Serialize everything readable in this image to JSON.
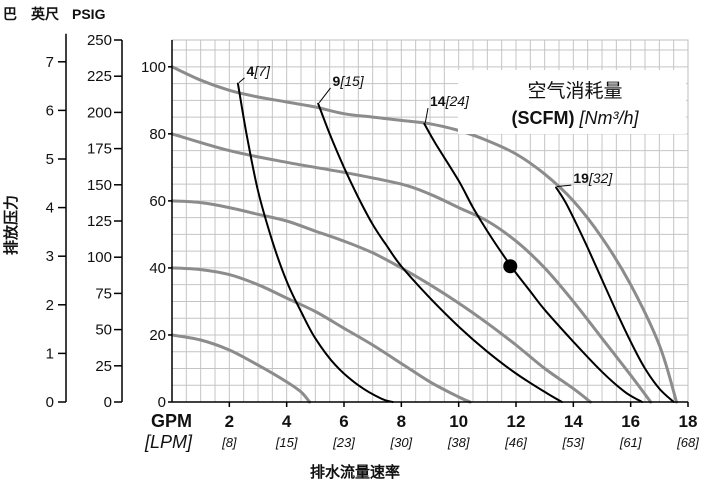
{
  "chart_data": {
    "type": "line",
    "title": "",
    "xlabel": "排水流量速率",
    "ylabel": "排放压力",
    "x_axis": {
      "unit_primary": "GPM",
      "unit_secondary": "[LPM]",
      "range": [
        0,
        18
      ],
      "ticks": [
        {
          "gpm": "2",
          "lpm": "[8]",
          "v": 2
        },
        {
          "gpm": "4",
          "lpm": "[15]",
          "v": 4
        },
        {
          "gpm": "6",
          "lpm": "[23]",
          "v": 6
        },
        {
          "gpm": "8",
          "lpm": "[30]",
          "v": 8
        },
        {
          "gpm": "10",
          "lpm": "[38]",
          "v": 10
        },
        {
          "gpm": "12",
          "lpm": "[46]",
          "v": 12
        },
        {
          "gpm": "14",
          "lpm": "[53]",
          "v": 14
        },
        {
          "gpm": "16",
          "lpm": "[61]",
          "v": 16
        },
        {
          "gpm": "18",
          "lpm": "[68]",
          "v": 18
        }
      ]
    },
    "y_axis_feet": {
      "unit": "英尺",
      "range": [
        0,
        250
      ],
      "ticks": [
        "0",
        "25",
        "50",
        "75",
        "100",
        "125",
        "150",
        "175",
        "200",
        "225",
        "250"
      ]
    },
    "y_axis_bar": {
      "unit": "巴",
      "ticks": [
        {
          "label": "0",
          "psig": 0
        },
        {
          "label": "1",
          "psig": 14.5
        },
        {
          "label": "2",
          "psig": 29
        },
        {
          "label": "3",
          "psig": 43.5
        },
        {
          "label": "4",
          "psig": 58
        },
        {
          "label": "5",
          "psig": 72.5
        },
        {
          "label": "6",
          "psig": 87
        },
        {
          "label": "7",
          "psig": 101.5
        }
      ]
    },
    "y_axis_psig": {
      "unit": "PSIG",
      "range": [
        0,
        108
      ],
      "ticks": [
        "0",
        "20",
        "40",
        "60",
        "80",
        "100"
      ]
    },
    "grid": true,
    "legend": {
      "title_cn": "空气消耗量",
      "title_unit_bold": "(SCFM)",
      "title_unit_italic": "[Nm³/h]"
    },
    "pressure_curves": [
      {
        "points": [
          [
            0,
            100
          ],
          [
            1,
            96
          ],
          [
            2,
            93
          ],
          [
            3,
            91
          ],
          [
            4,
            89.5
          ],
          [
            5,
            88
          ],
          [
            6,
            86
          ],
          [
            7,
            85
          ],
          [
            8,
            84
          ],
          [
            9,
            83
          ],
          [
            10,
            81
          ],
          [
            11,
            78
          ],
          [
            12,
            74
          ],
          [
            13,
            68
          ],
          [
            14,
            60
          ],
          [
            15,
            49
          ],
          [
            16,
            35
          ],
          [
            17,
            17
          ],
          [
            17.6,
            0
          ]
        ]
      },
      {
        "points": [
          [
            0,
            80
          ],
          [
            2,
            75
          ],
          [
            4,
            71.5
          ],
          [
            6,
            68.5
          ],
          [
            8,
            65
          ],
          [
            9,
            62
          ],
          [
            10,
            58
          ],
          [
            11,
            54
          ],
          [
            12,
            48
          ],
          [
            13,
            40
          ],
          [
            14,
            30
          ],
          [
            15,
            19
          ],
          [
            16,
            8
          ],
          [
            16.7,
            0
          ]
        ]
      },
      {
        "points": [
          [
            0,
            60
          ],
          [
            1,
            59.5
          ],
          [
            2,
            58
          ],
          [
            3,
            56
          ],
          [
            4,
            54
          ],
          [
            5,
            51
          ],
          [
            6,
            48
          ],
          [
            7,
            44.5
          ],
          [
            8,
            40
          ],
          [
            9,
            35
          ],
          [
            10,
            29.5
          ],
          [
            11,
            23.5
          ],
          [
            12,
            17
          ],
          [
            13,
            10
          ],
          [
            14,
            4
          ],
          [
            14.6,
            0
          ]
        ]
      },
      {
        "points": [
          [
            0,
            40
          ],
          [
            1,
            39.5
          ],
          [
            2,
            38
          ],
          [
            3,
            35
          ],
          [
            4,
            31
          ],
          [
            5,
            27
          ],
          [
            6,
            22
          ],
          [
            7,
            17
          ],
          [
            8,
            11.5
          ],
          [
            9,
            6
          ],
          [
            10,
            1.5
          ],
          [
            10.4,
            0
          ]
        ]
      },
      {
        "points": [
          [
            0,
            20
          ],
          [
            1,
            18.5
          ],
          [
            2,
            15.5
          ],
          [
            3,
            11
          ],
          [
            4,
            6
          ],
          [
            4.5,
            3
          ],
          [
            4.8,
            0
          ]
        ]
      }
    ],
    "air_consumption_curves": [
      {
        "label_bold": "4",
        "label_italic": "[7]",
        "label_at": [
          2.6,
          97
        ],
        "points": [
          [
            2.3,
            95
          ],
          [
            2.6,
            80
          ],
          [
            3,
            63
          ],
          [
            3.5,
            48
          ],
          [
            4,
            36
          ],
          [
            4.5,
            27
          ],
          [
            5,
            19
          ],
          [
            5.7,
            11
          ],
          [
            6.5,
            5
          ],
          [
            7.3,
            1
          ],
          [
            7.7,
            0
          ]
        ]
      },
      {
        "label_bold": "9",
        "label_italic": "[15]",
        "label_at": [
          5.6,
          94
        ],
        "points": [
          [
            5.1,
            89
          ],
          [
            5.5,
            80
          ],
          [
            6,
            70
          ],
          [
            6.5,
            61
          ],
          [
            7,
            53
          ],
          [
            7.5,
            46.5
          ],
          [
            8,
            40.5
          ],
          [
            9,
            31
          ],
          [
            10,
            22.5
          ],
          [
            11,
            15
          ],
          [
            12,
            8.5
          ],
          [
            13,
            3
          ],
          [
            13.6,
            0
          ]
        ]
      },
      {
        "label_bold": "14",
        "label_italic": "[24]",
        "label_at": [
          9.0,
          88
        ],
        "points": [
          [
            8.8,
            83
          ],
          [
            9.2,
            77
          ],
          [
            10,
            66
          ],
          [
            10.5,
            58
          ],
          [
            11,
            51
          ],
          [
            11.5,
            44.5
          ],
          [
            12,
            38.5
          ],
          [
            12.5,
            33
          ],
          [
            13,
            27.5
          ],
          [
            14,
            18
          ],
          [
            15,
            9
          ],
          [
            15.8,
            3
          ],
          [
            16.4,
            0
          ]
        ]
      },
      {
        "label_bold": "19",
        "label_italic": "[32]",
        "label_at": [
          14.0,
          65
        ],
        "points": [
          [
            13.4,
            64
          ],
          [
            13.7,
            60
          ],
          [
            14,
            55
          ],
          [
            14.5,
            46
          ],
          [
            15,
            36.5
          ],
          [
            15.5,
            27
          ],
          [
            16,
            18
          ],
          [
            16.5,
            10
          ],
          [
            17,
            4
          ],
          [
            17.5,
            0
          ]
        ]
      }
    ],
    "marker": {
      "x": 11.8,
      "y": 40.5
    }
  }
}
